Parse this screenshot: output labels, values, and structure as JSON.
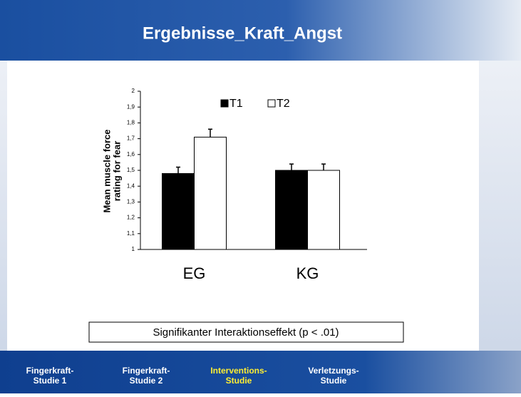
{
  "slide_title": "Ergebnisse_Kraft_Angst",
  "chart_data": {
    "type": "bar",
    "y_label": [
      "Mean muscle force",
      "rating for fear"
    ],
    "categories": [
      "EG",
      "KG"
    ],
    "series": [
      {
        "name": "T1",
        "color": "#000000",
        "values": [
          1.48,
          1.5
        ],
        "errors": [
          0.04,
          0.04
        ]
      },
      {
        "name": "T2",
        "color": "#ffffff",
        "values": [
          1.71,
          1.5
        ],
        "errors": [
          0.05,
          0.04
        ]
      }
    ],
    "ylim": [
      1,
      2
    ],
    "yticks": [
      1,
      {
        "value": 1.1,
        "label": "1,1"
      },
      {
        "value": 1.2,
        "label": "1,2"
      },
      {
        "value": 1.3,
        "label": "1,3"
      },
      {
        "value": 1.4,
        "label": "1,4"
      },
      {
        "value": 1.5,
        "label": "1,5"
      },
      {
        "value": 1.6,
        "label": "1,6"
      },
      {
        "value": 1.7,
        "label": "1,7"
      },
      {
        "value": 1.8,
        "label": "1,8"
      },
      {
        "value": 1.9,
        "label": "1,9"
      },
      2
    ],
    "grid": false,
    "legend": "top"
  },
  "note": "Signifikanter  Interaktionseffekt  (p < .01)",
  "nav": [
    {
      "lines": [
        "Fingerkraft-",
        "Studie 1"
      ],
      "active": false
    },
    {
      "lines": [
        "Fingerkraft-",
        "Studie 2"
      ],
      "active": false
    },
    {
      "lines": [
        "Interventions-",
        "Studie"
      ],
      "active": true
    },
    {
      "lines": [
        "Verletzungs-",
        "Studie"
      ],
      "active": false
    }
  ]
}
